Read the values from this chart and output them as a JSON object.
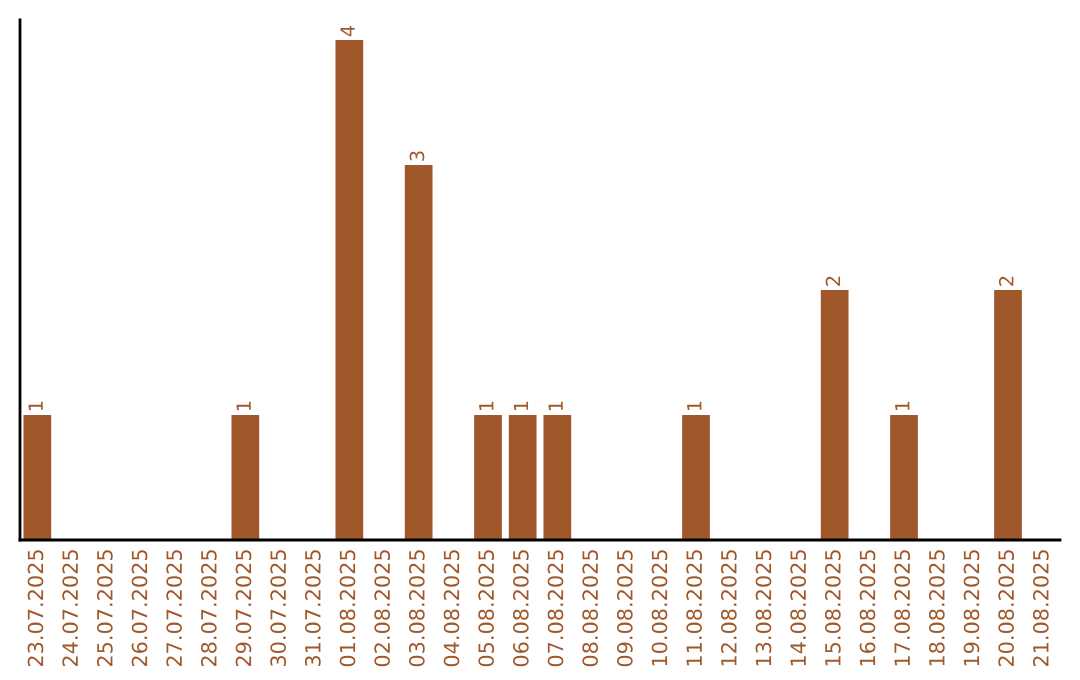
{
  "chart_data": {
    "type": "bar",
    "categories": [
      "23.07.2025",
      "24.07.2025",
      "25.07.2025",
      "26.07.2025",
      "27.07.2025",
      "28.07.2025",
      "29.07.2025",
      "30.07.2025",
      "31.07.2025",
      "01.08.2025",
      "02.08.2025",
      "03.08.2025",
      "04.08.2025",
      "05.08.2025",
      "06.08.2025",
      "07.08.2025",
      "08.08.2025",
      "09.08.2025",
      "10.08.2025",
      "11.08.2025",
      "12.08.2025",
      "13.08.2025",
      "14.08.2025",
      "15.08.2025",
      "16.08.2025",
      "17.08.2025",
      "18.08.2025",
      "19.08.2025",
      "20.08.2025",
      "21.08.2025"
    ],
    "values": [
      1,
      0,
      0,
      0,
      0,
      0,
      1,
      0,
      0,
      4,
      0,
      3,
      0,
      1,
      1,
      1,
      0,
      0,
      0,
      1,
      0,
      0,
      0,
      2,
      0,
      1,
      0,
      0,
      2,
      0
    ],
    "value_labels": [
      "1",
      null,
      null,
      null,
      null,
      null,
      "1",
      null,
      null,
      "4",
      null,
      "3",
      null,
      "1",
      "1",
      "1",
      null,
      null,
      null,
      "1",
      null,
      null,
      null,
      "2",
      null,
      "1",
      null,
      null,
      "2",
      null
    ],
    "color": "#a0582a",
    "ylim": [
      0,
      4.16
    ],
    "tick_labels": "x",
    "grid": false,
    "legend": false
  }
}
